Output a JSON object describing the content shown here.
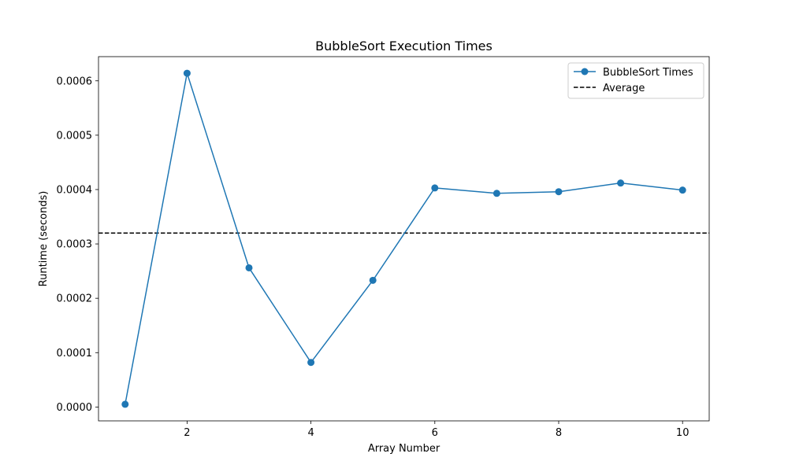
{
  "chart_data": {
    "type": "line",
    "title": "BubbleSort Execution Times",
    "xlabel": "Array Number",
    "ylabel": "Runtime (seconds)",
    "x": [
      1,
      2,
      3,
      4,
      5,
      6,
      7,
      8,
      9,
      10
    ],
    "series": [
      {
        "name": "BubbleSort Times",
        "values": [
          5e-06,
          0.000614,
          0.000256,
          8.2e-05,
          0.000233,
          0.000403,
          0.000393,
          0.000396,
          0.000412,
          0.000399
        ],
        "color": "#1f77b4",
        "marker": "circle"
      }
    ],
    "reference_lines": [
      {
        "name": "Average",
        "value": 0.00032,
        "color": "#000000",
        "style": "dashed"
      }
    ],
    "xlim": [
      0.57,
      10.43
    ],
    "ylim": [
      -2.55e-05,
      0.0006445
    ],
    "xticks": [
      2,
      4,
      6,
      8,
      10
    ],
    "xtick_labels": [
      "2",
      "4",
      "6",
      "8",
      "10"
    ],
    "yticks": [
      0,
      0.0001,
      0.0002,
      0.0003,
      0.0004,
      0.0005,
      0.0006
    ],
    "ytick_labels": [
      "0.0000",
      "0.0001",
      "0.0002",
      "0.0003",
      "0.0004",
      "0.0005",
      "0.0006"
    ],
    "grid": false,
    "legend_position": "top-right"
  }
}
